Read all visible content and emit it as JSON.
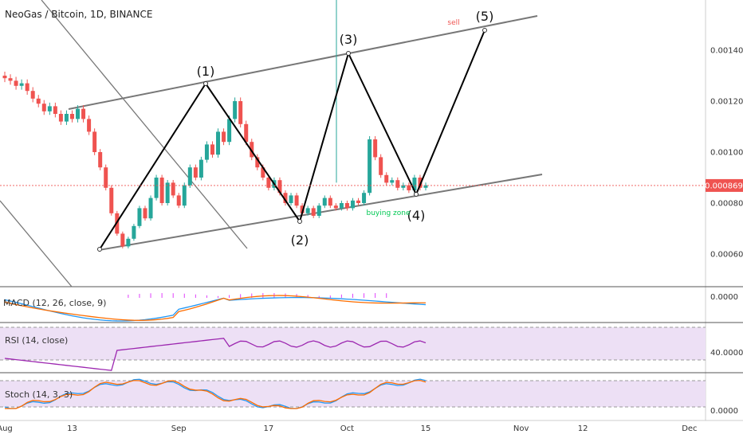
{
  "header": {
    "title": "NeoGas / Bitcoin, 1D, BINANCE"
  },
  "chart_data": {
    "type": "candlestick",
    "symbol": "NeoGas / Bitcoin",
    "interval": "1D",
    "exchange": "BINANCE",
    "ylim": [
      0.00044,
      0.00158
    ],
    "current_price": "0.000869",
    "price_axis": {
      "ticks": [
        {
          "value": 0.0014,
          "label": "0.001400"
        },
        {
          "value": 0.0012,
          "label": "0.001200"
        },
        {
          "value": 0.001,
          "label": "0.001000"
        },
        {
          "value": 0.0008,
          "label": "0.000800"
        },
        {
          "value": 0.0006,
          "label": "0.000600"
        }
      ]
    },
    "time_axis": {
      "ticks": [
        {
          "label": "Aug",
          "day": 0
        },
        {
          "label": "13",
          "day": 12
        },
        {
          "label": "Sep",
          "day": 31
        },
        {
          "label": "17",
          "day": 47
        },
        {
          "label": "Oct",
          "day": 61
        },
        {
          "label": "15",
          "day": 75
        },
        {
          "label": "Nov",
          "day": 92
        },
        {
          "label": "12",
          "day": 103
        },
        {
          "label": "Dec",
          "day": 122
        }
      ]
    },
    "candles": [
      [
        0.0013,
        0.00129
      ],
      [
        0.00129,
        0.00128
      ],
      [
        0.00128,
        0.00126
      ],
      [
        0.00126,
        0.00127
      ],
      [
        0.00127,
        0.00124
      ],
      [
        0.00124,
        0.00121
      ],
      [
        0.00121,
        0.00119
      ],
      [
        0.00119,
        0.00116
      ],
      [
        0.00116,
        0.00118
      ],
      [
        0.00118,
        0.00115
      ],
      [
        0.00115,
        0.00112
      ],
      [
        0.00112,
        0.00115
      ],
      [
        0.00115,
        0.00113
      ],
      [
        0.00113,
        0.00117
      ],
      [
        0.00117,
        0.00113
      ],
      [
        0.00113,
        0.00108
      ],
      [
        0.00108,
        0.001
      ],
      [
        0.001,
        0.00094
      ],
      [
        0.00094,
        0.00086
      ],
      [
        0.00086,
        0.00076
      ],
      [
        0.00076,
        0.00068
      ],
      [
        0.00068,
        0.00063
      ],
      [
        0.00063,
        0.00066
      ],
      [
        0.00066,
        0.00071
      ],
      [
        0.00071,
        0.00078
      ],
      [
        0.00078,
        0.00074
      ],
      [
        0.00074,
        0.00082
      ],
      [
        0.00082,
        0.0009
      ],
      [
        0.0009,
        0.0008
      ],
      [
        0.0008,
        0.00088
      ],
      [
        0.00088,
        0.00083
      ],
      [
        0.00083,
        0.00079
      ],
      [
        0.00079,
        0.00087
      ],
      [
        0.00087,
        0.00094
      ],
      [
        0.00094,
        0.0009
      ],
      [
        0.0009,
        0.00097
      ],
      [
        0.00097,
        0.00103
      ],
      [
        0.00103,
        0.00099
      ],
      [
        0.00099,
        0.00108
      ],
      [
        0.00108,
        0.00104
      ],
      [
        0.00104,
        0.00113
      ],
      [
        0.00113,
        0.0012
      ],
      [
        0.0012,
        0.00111
      ],
      [
        0.00111,
        0.00104
      ],
      [
        0.00104,
        0.00098
      ],
      [
        0.00098,
        0.00094
      ],
      [
        0.00094,
        0.0009
      ],
      [
        0.0009,
        0.00086
      ],
      [
        0.00086,
        0.00089
      ],
      [
        0.00089,
        0.00084
      ],
      [
        0.00084,
        0.0008
      ],
      [
        0.0008,
        0.00083
      ],
      [
        0.00083,
        0.00079
      ],
      [
        0.00079,
        0.00076
      ],
      [
        0.00076,
        0.00078
      ],
      [
        0.00078,
        0.00075
      ],
      [
        0.00075,
        0.00079
      ],
      [
        0.00079,
        0.00082
      ],
      [
        0.00082,
        0.00079
      ],
      [
        0.00079,
        0.00078
      ],
      [
        0.00078,
        0.0008
      ],
      [
        0.0008,
        0.00078
      ],
      [
        0.00078,
        0.00081
      ],
      [
        0.00081,
        0.0008
      ],
      [
        0.0008,
        0.00084
      ],
      [
        0.00084,
        0.00105
      ],
      [
        0.00105,
        0.00098
      ],
      [
        0.00098,
        0.00091
      ],
      [
        0.00091,
        0.00088
      ],
      [
        0.00088,
        0.00089
      ],
      [
        0.00089,
        0.00086
      ],
      [
        0.00086,
        0.00087
      ],
      [
        0.00087,
        0.00085
      ],
      [
        0.00085,
        0.0009
      ],
      [
        0.0009,
        0.00086
      ],
      [
        0.00086,
        0.00087
      ]
    ],
    "annotations": {
      "wave_labels": [
        "(1)",
        "(2)",
        "(3)",
        "(4)",
        "(5)"
      ],
      "sell_label": "sell",
      "buy_label": "buying zone"
    },
    "indicators": [
      {
        "name": "MACD",
        "label": "MACD (12, 26, close, 9)",
        "ticks": [
          "0.0000"
        ],
        "colors": {
          "macd": "#2196f3",
          "signal": "#ff6d00",
          "hist": "#e040fb"
        }
      },
      {
        "name": "RSI",
        "label": "RSI (14, close)",
        "ticks": [
          "40.0000"
        ],
        "colors": {
          "line": "#9c27b0",
          "band": "#e1bee7"
        }
      },
      {
        "name": "Stoch",
        "label": "Stoch (14, 3, 3)",
        "ticks": [
          "0.0000"
        ],
        "colors": {
          "k": "#2196f3",
          "d": "#ff6d00",
          "band": "#e1bee7"
        }
      }
    ],
    "colors": {
      "up": "#26a69a",
      "down": "#ef5350",
      "channel": "#777777",
      "wave": "#000000",
      "price_line": "#ef5350",
      "sell": "#ef5350",
      "buy": "#00c853",
      "axis_text": "#333333"
    },
    "grid": false,
    "legend": "top-left"
  }
}
